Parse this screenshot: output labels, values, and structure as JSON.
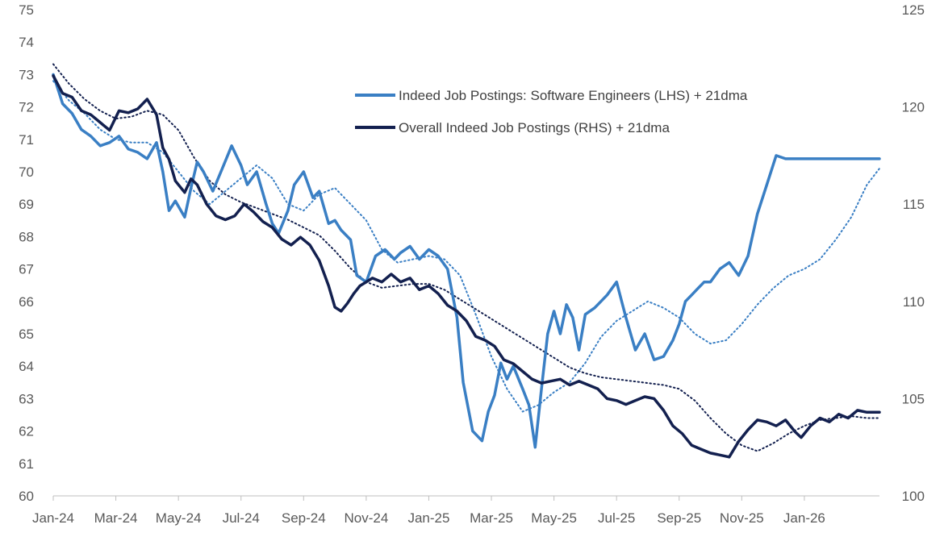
{
  "chart_data": {
    "type": "line",
    "title": "",
    "xlabel": "",
    "ylabel_left": "",
    "ylabel_right": "",
    "x_domain": [
      0,
      26.4
    ],
    "x_ticks": [
      {
        "label": "Jan-24",
        "x": 0
      },
      {
        "label": "Mar-24",
        "x": 2
      },
      {
        "label": "May-24",
        "x": 4
      },
      {
        "label": "Jul-24",
        "x": 6
      },
      {
        "label": "Sep-24",
        "x": 8
      },
      {
        "label": "Nov-24",
        "x": 10
      },
      {
        "label": "Jan-25",
        "x": 12
      },
      {
        "label": "Mar-25",
        "x": 14
      },
      {
        "label": "May-25",
        "x": 16
      },
      {
        "label": "Jul-25",
        "x": 18
      },
      {
        "label": "Sep-25",
        "x": 20
      },
      {
        "label": "Nov-25",
        "x": 22
      },
      {
        "label": "Jan-26",
        "x": 24
      }
    ],
    "y_left": {
      "min": 60,
      "max": 75,
      "ticks": [
        60,
        61,
        62,
        63,
        64,
        65,
        66,
        67,
        68,
        69,
        70,
        71,
        72,
        73,
        74,
        75
      ]
    },
    "y_right": {
      "min": 100,
      "max": 125,
      "ticks": [
        100,
        105,
        110,
        115,
        120,
        125
      ]
    },
    "grid": false,
    "legend": {
      "position": "top-center",
      "entries": [
        {
          "label": "Indeed Job Postings: Software Engineers (LHS) + 21dma",
          "color": "#3A7FC4"
        },
        {
          "label": "Overall Indeed Job Postings (RHS) + 21dma",
          "color": "#13204F"
        }
      ]
    },
    "series": [
      {
        "name": "Indeed Job Postings: Software Engineers (LHS)",
        "axis": "left",
        "color": "#3A7FC4",
        "style": "solid",
        "x": [
          0,
          0.3,
          0.6,
          0.9,
          1.2,
          1.5,
          1.8,
          2.1,
          2.4,
          2.7,
          3.0,
          3.3,
          3.5,
          3.7,
          3.9,
          4.2,
          4.4,
          4.6,
          4.8,
          5.1,
          5.4,
          5.7,
          6.0,
          6.2,
          6.5,
          6.8,
          7.0,
          7.2,
          7.5,
          7.7,
          8.0,
          8.3,
          8.5,
          8.8,
          9.0,
          9.2,
          9.5,
          9.7,
          10.0,
          10.3,
          10.6,
          10.9,
          11.1,
          11.4,
          11.7,
          12.0,
          12.3,
          12.6,
          12.9,
          13.1,
          13.4,
          13.7,
          13.9,
          14.1,
          14.3,
          14.5,
          14.7,
          15.0,
          15.2,
          15.4,
          15.6,
          15.8,
          16.0,
          16.2,
          16.4,
          16.6,
          16.8,
          17.0,
          17.3,
          17.5,
          17.7,
          18.0,
          18.3,
          18.6,
          18.9,
          19.2,
          19.5,
          19.8,
          20.0,
          20.2,
          20.4,
          20.6,
          20.8,
          21.0,
          21.3,
          21.6,
          21.9,
          22.2,
          22.5,
          22.8,
          23.1,
          23.4,
          23.7,
          24.0,
          24.3,
          24.6,
          24.9,
          25.2,
          25.5,
          25.8,
          26.1,
          26.4
        ],
        "values": [
          73.0,
          72.1,
          71.8,
          71.3,
          71.1,
          70.8,
          70.9,
          71.1,
          70.7,
          70.6,
          70.4,
          70.9,
          70.0,
          68.8,
          69.1,
          68.6,
          69.5,
          70.3,
          70.0,
          69.4,
          70.1,
          70.8,
          70.2,
          69.6,
          70.0,
          69.0,
          68.4,
          68.1,
          68.8,
          69.6,
          70.0,
          69.2,
          69.4,
          68.4,
          68.5,
          68.2,
          67.9,
          66.8,
          66.6,
          67.4,
          67.6,
          67.3,
          67.5,
          67.7,
          67.3,
          67.6,
          67.4,
          67.0,
          65.5,
          63.5,
          62.0,
          61.7,
          62.6,
          63.1,
          64.1,
          63.6,
          64.0,
          63.3,
          62.8,
          61.5,
          63.3,
          65.0,
          65.7,
          65.0,
          65.9,
          65.5,
          64.5,
          65.6,
          65.8,
          66.0,
          66.2,
          66.6,
          65.5,
          64.5,
          65.0,
          64.2,
          64.3,
          64.8,
          65.3,
          66.0,
          66.2,
          66.4,
          66.6,
          66.6,
          67.0,
          67.2,
          66.8,
          67.4,
          68.7,
          69.6,
          70.5,
          70.4,
          70.4,
          70.4,
          70.4,
          70.4,
          70.4,
          70.4,
          70.4,
          70.4,
          70.4,
          70.4
        ]
      },
      {
        "name": "Software Engineers 21dma",
        "axis": "left",
        "color": "#3A7FC4",
        "style": "dotted",
        "x": [
          0,
          0.5,
          1.0,
          1.5,
          2.0,
          2.5,
          3.0,
          3.5,
          4.0,
          4.5,
          5.0,
          5.5,
          6.0,
          6.5,
          7.0,
          7.5,
          8.0,
          8.5,
          9.0,
          9.5,
          10.0,
          10.5,
          11.0,
          11.5,
          12.0,
          12.5,
          13.0,
          13.5,
          14.0,
          14.5,
          15.0,
          15.5,
          16.0,
          16.5,
          17.0,
          17.5,
          18.0,
          18.5,
          19.0,
          19.5,
          20.0,
          20.5,
          21.0,
          21.5,
          22.0,
          22.5,
          23.0,
          23.5,
          24.0,
          24.5,
          25.0,
          25.5,
          26.0,
          26.4
        ],
        "values": [
          72.8,
          72.2,
          71.8,
          71.3,
          71.0,
          70.9,
          70.9,
          70.6,
          70.0,
          69.4,
          69.0,
          69.4,
          69.8,
          70.2,
          69.8,
          69.0,
          68.8,
          69.3,
          69.5,
          69.0,
          68.5,
          67.6,
          67.2,
          67.3,
          67.4,
          67.3,
          66.8,
          65.6,
          64.3,
          63.3,
          62.6,
          62.8,
          63.2,
          63.5,
          64.1,
          64.9,
          65.4,
          65.7,
          66.0,
          65.8,
          65.5,
          65.0,
          64.7,
          64.8,
          65.3,
          65.9,
          66.4,
          66.8,
          67.0,
          67.3,
          67.9,
          68.6,
          69.6,
          70.1
        ]
      },
      {
        "name": "Overall Indeed Job Postings (RHS)",
        "axis": "right",
        "color": "#13204F",
        "style": "solid",
        "x": [
          0,
          0.3,
          0.6,
          0.9,
          1.2,
          1.5,
          1.8,
          2.1,
          2.4,
          2.7,
          3.0,
          3.3,
          3.5,
          3.7,
          3.9,
          4.2,
          4.4,
          4.6,
          4.9,
          5.2,
          5.5,
          5.8,
          6.1,
          6.4,
          6.7,
          7.0,
          7.3,
          7.6,
          7.9,
          8.2,
          8.5,
          8.8,
          9.0,
          9.2,
          9.4,
          9.6,
          9.8,
          10.0,
          10.2,
          10.5,
          10.8,
          11.1,
          11.4,
          11.7,
          12.0,
          12.3,
          12.6,
          12.9,
          13.2,
          13.5,
          13.8,
          14.1,
          14.4,
          14.7,
          15.0,
          15.3,
          15.6,
          15.9,
          16.2,
          16.5,
          16.8,
          17.1,
          17.4,
          17.7,
          18.0,
          18.3,
          18.6,
          18.9,
          19.2,
          19.5,
          19.8,
          20.1,
          20.4,
          20.7,
          21.0,
          21.3,
          21.6,
          21.9,
          22.2,
          22.5,
          22.8,
          23.1,
          23.4,
          23.7,
          23.9,
          24.2,
          24.5,
          24.8,
          25.1,
          25.4,
          25.7,
          26.0,
          26.4
        ],
        "values": [
          121.6,
          120.7,
          120.5,
          119.8,
          119.6,
          119.2,
          118.8,
          119.8,
          119.7,
          119.9,
          120.4,
          119.6,
          117.9,
          117.3,
          116.2,
          115.6,
          116.3,
          116.0,
          115.0,
          114.4,
          114.2,
          114.4,
          115.0,
          114.6,
          114.1,
          113.8,
          113.2,
          112.9,
          113.3,
          112.9,
          112.1,
          110.8,
          109.7,
          109.5,
          109.9,
          110.4,
          110.8,
          111.0,
          111.2,
          111.0,
          111.4,
          111.0,
          111.2,
          110.6,
          110.8,
          110.4,
          109.8,
          109.5,
          109.0,
          108.2,
          108.0,
          107.7,
          107.0,
          106.8,
          106.4,
          106.0,
          105.8,
          105.9,
          106.0,
          105.7,
          105.9,
          105.7,
          105.5,
          105.0,
          104.9,
          104.7,
          104.9,
          105.1,
          105.0,
          104.4,
          103.6,
          103.2,
          102.6,
          102.4,
          102.2,
          102.1,
          102.0,
          102.8,
          103.4,
          103.9,
          103.8,
          103.6,
          103.9,
          103.3,
          103.0,
          103.6,
          104.0,
          103.8,
          104.2,
          104.0,
          104.4,
          104.3,
          104.3
        ]
      },
      {
        "name": "Overall Indeed Job Postings 21dma",
        "axis": "right",
        "color": "#13204F",
        "style": "dotted",
        "x": [
          0,
          0.5,
          1.0,
          1.5,
          2.0,
          2.5,
          3.0,
          3.5,
          4.0,
          4.5,
          5.0,
          5.5,
          6.0,
          6.5,
          7.0,
          7.5,
          8.0,
          8.5,
          9.0,
          9.5,
          10.0,
          10.5,
          11.0,
          11.5,
          12.0,
          12.5,
          13.0,
          13.5,
          14.0,
          14.5,
          15.0,
          15.5,
          16.0,
          16.5,
          17.0,
          17.5,
          18.0,
          18.5,
          19.0,
          19.5,
          20.0,
          20.5,
          21.0,
          21.5,
          22.0,
          22.5,
          23.0,
          23.5,
          24.0,
          24.5,
          25.0,
          25.5,
          26.0,
          26.4
        ],
        "values": [
          122.2,
          121.2,
          120.4,
          119.8,
          119.4,
          119.5,
          119.8,
          119.6,
          118.8,
          117.4,
          116.2,
          115.5,
          115.1,
          114.8,
          114.5,
          114.2,
          113.8,
          113.4,
          112.6,
          111.7,
          111.0,
          110.7,
          110.8,
          110.9,
          110.9,
          110.6,
          110.1,
          109.6,
          109.1,
          108.6,
          108.1,
          107.6,
          107.1,
          106.6,
          106.3,
          106.1,
          106.0,
          105.9,
          105.8,
          105.7,
          105.5,
          104.9,
          104.0,
          103.2,
          102.6,
          102.3,
          102.7,
          103.2,
          103.6,
          103.9,
          104.0,
          104.1,
          104.0,
          104.0
        ]
      }
    ]
  }
}
